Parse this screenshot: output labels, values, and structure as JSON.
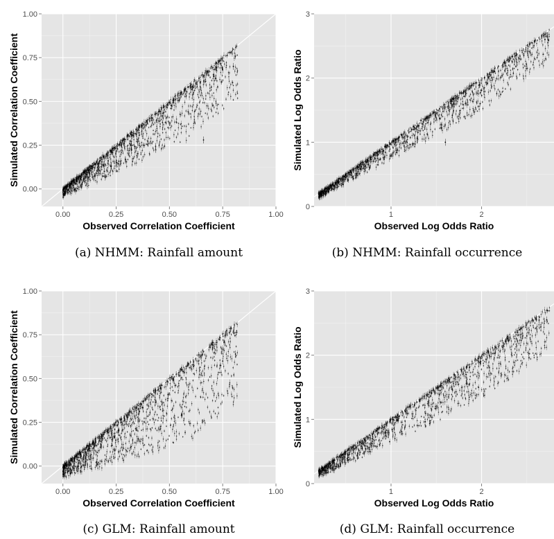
{
  "colors": {
    "panel_background": "#e5e5e5",
    "grid_major": "#ffffff",
    "grid_minor": "#f2f2f2",
    "points": "#000000",
    "identity_line": "#ffffff"
  },
  "chart_data": [
    {
      "id": "a",
      "type": "scatter",
      "caption": "(a) NHMM: Rainfall amount",
      "xlabel": "Observed Correlation Coefficient",
      "ylabel": "Simulated Correlation Coefficient",
      "xlim": [
        -0.1,
        1.0
      ],
      "ylim": [
        -0.1,
        1.0
      ],
      "x_ticks": [
        0.0,
        0.25,
        0.5,
        0.75,
        1.0
      ],
      "x_tick_labels": [
        "0.00",
        "0.25",
        "0.50",
        "0.75",
        "1.00"
      ],
      "y_ticks": [
        0.0,
        0.25,
        0.5,
        0.75,
        1.0
      ],
      "y_tick_labels": [
        "0.00",
        "0.25",
        "0.50",
        "0.75",
        "1.00"
      ],
      "grid": true,
      "reference_line": "y = x",
      "point_cloud": {
        "x_range": [
          0.0,
          0.82
        ],
        "max_below_identity": 0.3,
        "note_points": [
          [
            0.75,
            0.68
          ],
          [
            0.8,
            0.7
          ],
          [
            0.66,
            0.28
          ]
        ]
      }
    },
    {
      "id": "b",
      "type": "scatter",
      "caption": "(b) NHMM: Rainfall occurrence",
      "xlabel": "Observed Log Odds Ratio",
      "ylabel": "Simulated Log Odds Ratio",
      "xlim": [
        0.15,
        2.8
      ],
      "ylim": [
        0.0,
        3.0
      ],
      "x_ticks": [
        1,
        2
      ],
      "x_tick_labels": [
        "1",
        "2"
      ],
      "y_ticks": [
        0,
        1,
        2,
        3
      ],
      "y_tick_labels": [
        "0",
        "1",
        "2",
        "3"
      ],
      "grid": true,
      "reference_line": "y = x",
      "point_cloud": {
        "x_range": [
          0.2,
          2.75
        ],
        "max_below_identity": 0.5,
        "note_points": [
          [
            2.7,
            2.6
          ],
          [
            1.6,
            1.0
          ]
        ]
      }
    },
    {
      "id": "c",
      "type": "scatter",
      "caption": "(c) GLM: Rainfall amount",
      "xlabel": "Observed Correlation Coefficient",
      "ylabel": "Simulated Correlation Coefficient",
      "xlim": [
        -0.1,
        1.0
      ],
      "ylim": [
        -0.1,
        1.0
      ],
      "x_ticks": [
        0.0,
        0.25,
        0.5,
        0.75,
        1.0
      ],
      "x_tick_labels": [
        "0.00",
        "0.25",
        "0.50",
        "0.75",
        "1.00"
      ],
      "y_ticks": [
        0.0,
        0.25,
        0.5,
        0.75,
        1.0
      ],
      "y_tick_labels": [
        "0.00",
        "0.25",
        "0.50",
        "0.75",
        "1.00"
      ],
      "grid": true,
      "reference_line": "y = x",
      "point_cloud": {
        "x_range": [
          0.0,
          0.82
        ],
        "max_below_identity": 0.45,
        "note_points": [
          [
            0.81,
            0.64
          ],
          [
            0.75,
            0.6
          ]
        ]
      }
    },
    {
      "id": "d",
      "type": "scatter",
      "caption": "(d) GLM: Rainfall occurrence",
      "xlabel": "Observed Log Odds Ratio",
      "ylabel": "Simulated Log Odds Ratio",
      "xlim": [
        0.15,
        2.8
      ],
      "ylim": [
        0.0,
        3.0
      ],
      "x_ticks": [
        1,
        2
      ],
      "x_tick_labels": [
        "1",
        "2"
      ],
      "y_ticks": [
        0,
        1,
        2,
        3
      ],
      "y_tick_labels": [
        "0",
        "1",
        "2",
        "3"
      ],
      "grid": true,
      "reference_line": "y = x",
      "point_cloud": {
        "x_range": [
          0.2,
          2.75
        ],
        "max_below_identity": 0.7,
        "note_points": [
          [
            2.72,
            2.55
          ],
          [
            2.5,
            2.3
          ]
        ]
      }
    }
  ]
}
